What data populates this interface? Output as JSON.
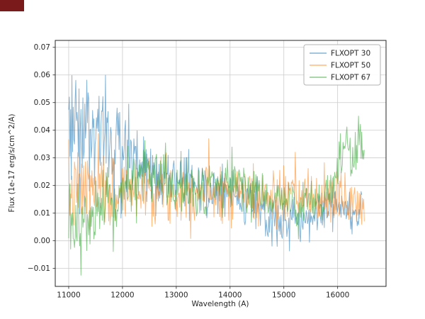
{
  "window": {
    "corner_marker_color": "#7a1a1a"
  },
  "chart_data": {
    "type": "line",
    "title": "",
    "xlabel": "Wavelength (A)",
    "ylabel": "Flux (1e-17 erg/s/cm^2/A)",
    "xlim": [
      10750,
      16900
    ],
    "ylim": [
      -0.0165,
      0.0725
    ],
    "grid": true,
    "grid_color": "#cccccc",
    "spine_color": "#262626",
    "line_alpha": 0.55,
    "legend": {
      "position": "upper right"
    },
    "xticks": [
      {
        "v": 11000,
        "label": "11000"
      },
      {
        "v": 12000,
        "label": "12000"
      },
      {
        "v": 13000,
        "label": "13000"
      },
      {
        "v": 14000,
        "label": "14000"
      },
      {
        "v": 15000,
        "label": "15000"
      },
      {
        "v": 16000,
        "label": "16000"
      }
    ],
    "yticks": [
      {
        "v": -0.01,
        "label": "−0.01"
      },
      {
        "v": 0.0,
        "label": "0.00"
      },
      {
        "v": 0.01,
        "label": "0.01"
      },
      {
        "v": 0.02,
        "label": "0.02"
      },
      {
        "v": 0.03,
        "label": "0.03"
      },
      {
        "v": 0.04,
        "label": "0.04"
      },
      {
        "v": 0.05,
        "label": "0.05"
      },
      {
        "v": 0.06,
        "label": "0.06"
      },
      {
        "v": 0.07,
        "label": "0.07"
      }
    ],
    "series": [
      {
        "name": "FLXOPT 30",
        "color": "#1f77b4",
        "seed": 3,
        "x_start": 11000,
        "x_end": 16450,
        "x_step": 12,
        "trend": [
          [
            11000,
            0.038
          ],
          [
            11150,
            0.046
          ],
          [
            11350,
            0.044
          ],
          [
            11600,
            0.042
          ],
          [
            11800,
            0.038
          ],
          [
            12000,
            0.032
          ],
          [
            12200,
            0.03
          ],
          [
            12400,
            0.026
          ],
          [
            12700,
            0.024
          ],
          [
            13000,
            0.023
          ],
          [
            13300,
            0.021
          ],
          [
            13600,
            0.019
          ],
          [
            13900,
            0.018
          ],
          [
            14200,
            0.016
          ],
          [
            14500,
            0.012
          ],
          [
            14700,
            0.007
          ],
          [
            14900,
            0.006
          ],
          [
            15100,
            0.008
          ],
          [
            15400,
            0.008
          ],
          [
            15700,
            0.01
          ],
          [
            16000,
            0.013
          ],
          [
            16200,
            0.011
          ],
          [
            16450,
            0.01
          ]
        ],
        "sigma": [
          [
            11000,
            0.012
          ],
          [
            11600,
            0.011
          ],
          [
            12000,
            0.009
          ],
          [
            12400,
            0.007
          ],
          [
            12800,
            0.006
          ],
          [
            13400,
            0.005
          ],
          [
            14000,
            0.005
          ],
          [
            14700,
            0.005
          ],
          [
            15200,
            0.004
          ],
          [
            16000,
            0.004
          ],
          [
            16450,
            0.0035
          ]
        ]
      },
      {
        "name": "FLXOPT 50",
        "color": "#ff7f0e",
        "seed": 7,
        "x_start": 11000,
        "x_end": 16500,
        "x_step": 12,
        "trend": [
          [
            11000,
            0.016
          ],
          [
            11300,
            0.019
          ],
          [
            11700,
            0.017
          ],
          [
            12000,
            0.018
          ],
          [
            12400,
            0.019
          ],
          [
            12800,
            0.018
          ],
          [
            13200,
            0.018
          ],
          [
            13600,
            0.019
          ],
          [
            14000,
            0.019
          ],
          [
            14400,
            0.017
          ],
          [
            14800,
            0.015
          ],
          [
            15200,
            0.016
          ],
          [
            15600,
            0.015
          ],
          [
            16000,
            0.016
          ],
          [
            16300,
            0.014
          ],
          [
            16500,
            0.012
          ]
        ],
        "sigma": [
          [
            11000,
            0.0075
          ],
          [
            12000,
            0.0065
          ],
          [
            13000,
            0.0055
          ],
          [
            14000,
            0.0055
          ],
          [
            15000,
            0.005
          ],
          [
            16000,
            0.005
          ],
          [
            16500,
            0.0045
          ]
        ]
      },
      {
        "name": "FLXOPT 67",
        "color": "#2ca02c",
        "seed": 13,
        "x_start": 11000,
        "x_end": 16500,
        "x_step": 12,
        "trend": [
          [
            11000,
            0.005
          ],
          [
            11300,
            0.006
          ],
          [
            11600,
            0.009
          ],
          [
            11900,
            0.013
          ],
          [
            12100,
            0.02
          ],
          [
            12300,
            0.025
          ],
          [
            12600,
            0.022
          ],
          [
            13000,
            0.02
          ],
          [
            13400,
            0.018
          ],
          [
            13800,
            0.019
          ],
          [
            14100,
            0.021
          ],
          [
            14500,
            0.017
          ],
          [
            14900,
            0.015
          ],
          [
            15300,
            0.013
          ],
          [
            15700,
            0.014
          ],
          [
            15950,
            0.02
          ],
          [
            16100,
            0.032
          ],
          [
            16250,
            0.031
          ],
          [
            16400,
            0.033
          ],
          [
            16500,
            0.032
          ]
        ],
        "sigma": [
          [
            11000,
            0.006
          ],
          [
            11800,
            0.008
          ],
          [
            12300,
            0.007
          ],
          [
            13000,
            0.005
          ],
          [
            14000,
            0.005
          ],
          [
            15000,
            0.0045
          ],
          [
            15800,
            0.005
          ],
          [
            16100,
            0.006
          ],
          [
            16500,
            0.005
          ]
        ]
      }
    ]
  }
}
